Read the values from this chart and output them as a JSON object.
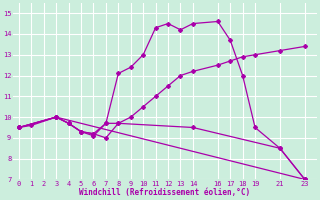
{
  "xlabel": "Windchill (Refroidissement éolien,°C)",
  "bg_color": "#cceedd",
  "grid_color": "#aaddcc",
  "line_color": "#aa00aa",
  "xlim": [
    -0.5,
    24
  ],
  "ylim": [
    7,
    15.5
  ],
  "xticks": [
    0,
    1,
    2,
    3,
    4,
    5,
    6,
    7,
    8,
    9,
    10,
    11,
    12,
    13,
    14,
    16,
    17,
    18,
    19,
    21,
    23
  ],
  "yticks": [
    7,
    8,
    9,
    10,
    11,
    12,
    13,
    14,
    15
  ],
  "series1_x": [
    0,
    1,
    3,
    4,
    5,
    6,
    7,
    8,
    9,
    10,
    11,
    12,
    13,
    14,
    16,
    17,
    18,
    19,
    21,
    23
  ],
  "series1_y": [
    9.5,
    9.6,
    10.0,
    9.7,
    9.3,
    9.2,
    9.0,
    9.7,
    10.0,
    10.5,
    11.0,
    11.5,
    12.0,
    12.2,
    12.5,
    12.7,
    12.9,
    13.0,
    13.2,
    13.4
  ],
  "series2_x": [
    0,
    3,
    4,
    5,
    6,
    7,
    8,
    9,
    10,
    11,
    12,
    13,
    14,
    16,
    17,
    18,
    19,
    21,
    23
  ],
  "series2_y": [
    9.5,
    10.0,
    9.7,
    9.3,
    9.2,
    9.7,
    12.1,
    12.4,
    13.0,
    14.3,
    14.5,
    14.2,
    14.5,
    14.6,
    13.7,
    12.0,
    9.5,
    8.5,
    7.0
  ],
  "series3_x": [
    0,
    3,
    4,
    5,
    6,
    7,
    8,
    14,
    21,
    23
  ],
  "series3_y": [
    9.5,
    10.0,
    9.7,
    9.3,
    9.1,
    9.7,
    9.7,
    9.5,
    8.5,
    7.0
  ],
  "series4_x": [
    0,
    3,
    23
  ],
  "series4_y": [
    9.5,
    10.0,
    7.0
  ]
}
